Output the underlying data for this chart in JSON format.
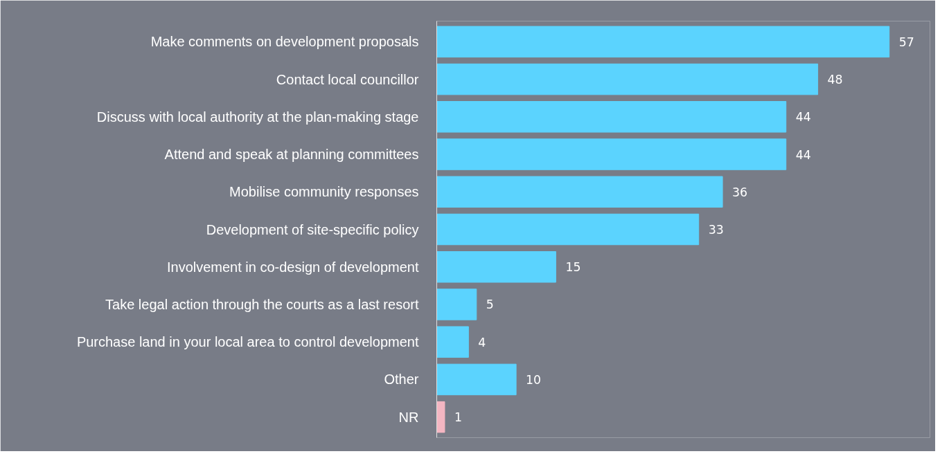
{
  "chart_data": {
    "type": "bar",
    "orientation": "horizontal",
    "categories": [
      "Make comments on development proposals",
      "Contact local councillor",
      "Discuss with local authority at the plan-making stage",
      "Attend and speak at planning committees",
      "Mobilise community responses",
      "Development of site-specific policy",
      "Involvement in co-design of development",
      "Take legal action through the courts as a last resort",
      "Purchase land in your local area to control development",
      "Other",
      "NR"
    ],
    "values": [
      57,
      48,
      44,
      44,
      36,
      33,
      15,
      5,
      4,
      10,
      1
    ],
    "colors": [
      "#5bd3fe",
      "#5bd3fe",
      "#5bd3fe",
      "#5bd3fe",
      "#5bd3fe",
      "#5bd3fe",
      "#5bd3fe",
      "#5bd3fe",
      "#5bd3fe",
      "#5bd3fe",
      "#f4b6c2"
    ],
    "data_labels": true,
    "grid": false
  }
}
